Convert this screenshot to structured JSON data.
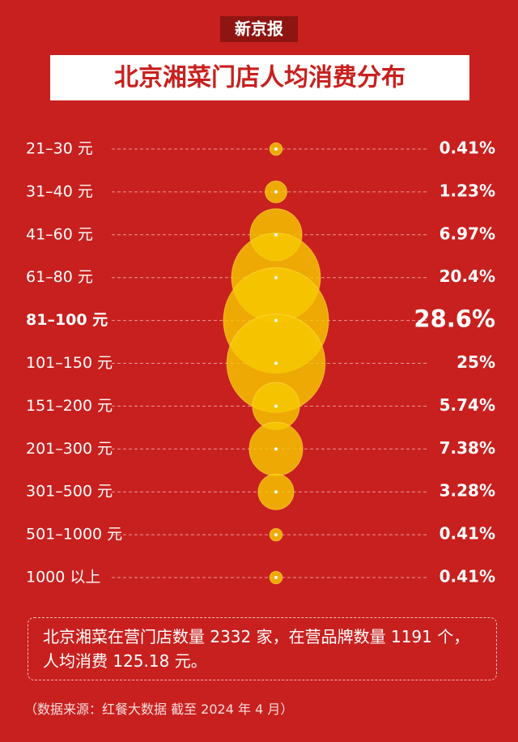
{
  "chart_data": {
    "type": "bubble",
    "brand": "新京报",
    "title": "北京湘菜门店人均消费分布",
    "categories": [
      "21–30 元",
      "31–40 元",
      "41–60 元",
      "61–80 元",
      "81–100 元",
      "101–150 元",
      "151–200 元",
      "201–300 元",
      "301–500 元",
      "501–1000 元",
      "1000 以上"
    ],
    "values": [
      0.41,
      1.23,
      6.97,
      20.4,
      28.6,
      25,
      5.74,
      7.38,
      3.28,
      0.41,
      0.41
    ],
    "value_labels": [
      "0.41%",
      "1.23%",
      "6.97%",
      "20.4%",
      "28.6%",
      "25%",
      "5.74%",
      "7.38%",
      "3.28%",
      "0.41%",
      "0.41%"
    ],
    "color": "#f6c800",
    "note": "北京湘菜在营门店数量 2332 家，在营品牌数量 1191 个，人均消费 125.18 元。",
    "source": "（数据来源：红餐大数据 截至 2024 年 4 月）"
  }
}
